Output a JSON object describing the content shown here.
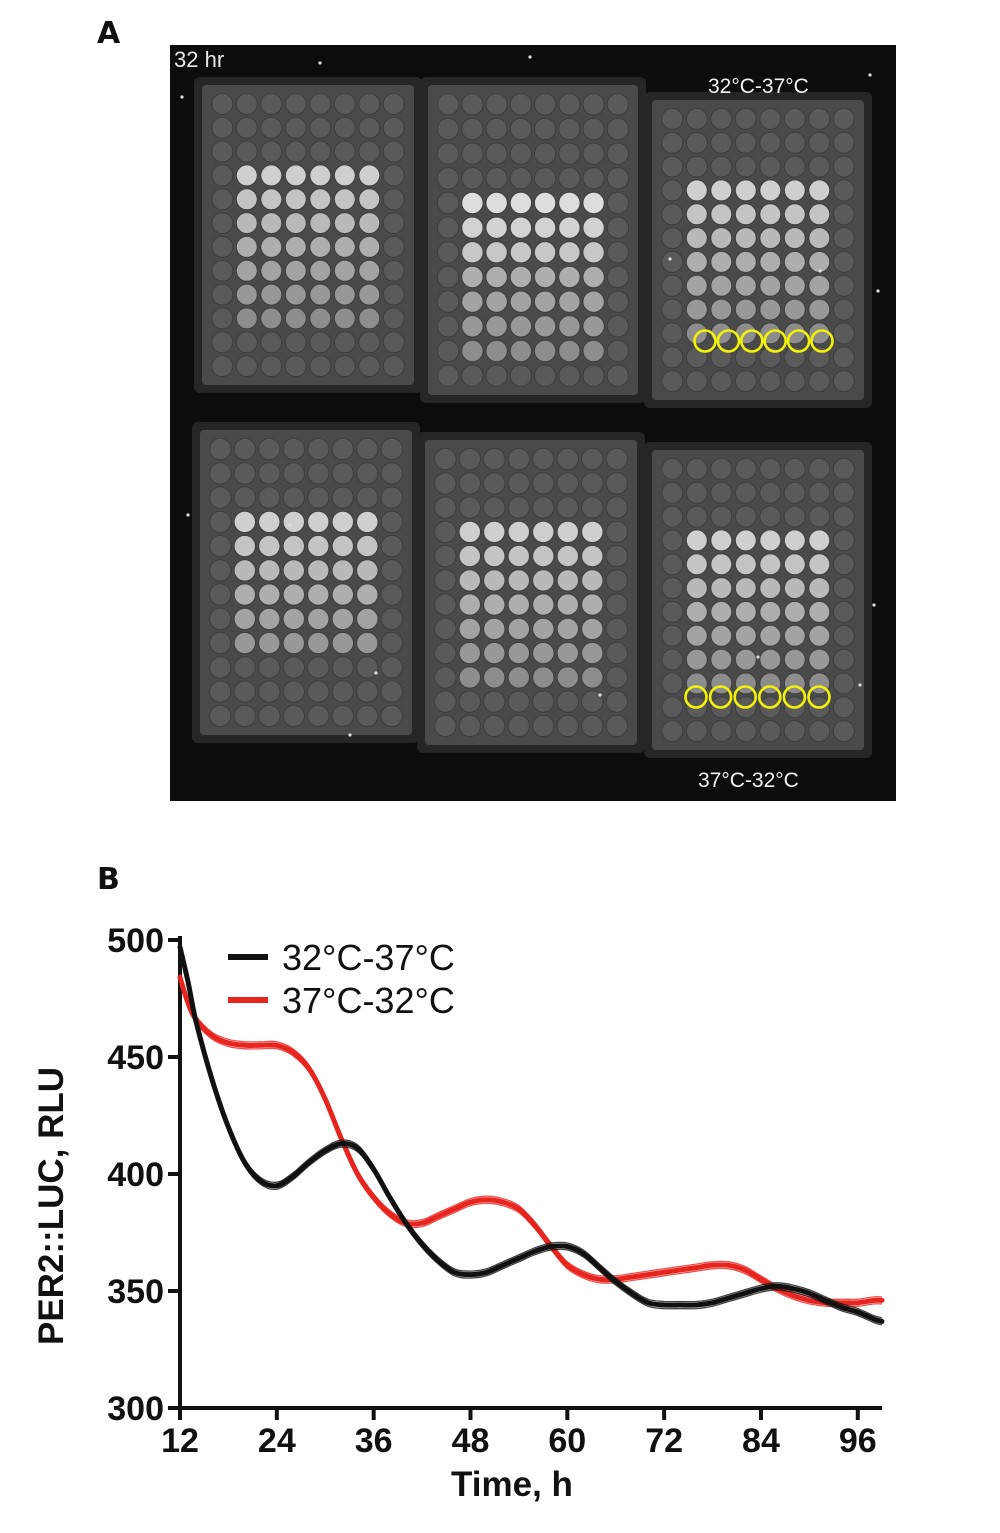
{
  "panel_a": {
    "label": "A",
    "timestamp": "32 hr",
    "top_label": "32°C-37°C",
    "bottom_label": "37°C-32°C",
    "highlight_color": "#f2f20a"
  },
  "panel_b": {
    "label": "B"
  },
  "chart_data": {
    "type": "line",
    "xlabel": "Time, h",
    "ylabel": "PER2::LUC, RLU",
    "xlim": [
      12,
      99
    ],
    "ylim": [
      300,
      500
    ],
    "xticks": [
      12,
      24,
      36,
      48,
      60,
      72,
      84,
      96
    ],
    "yticks": [
      300,
      350,
      400,
      450,
      500
    ],
    "legend_position": "top-left",
    "grid": false,
    "series": [
      {
        "name": "32°C-37°C",
        "color": "#111111",
        "x": [
          12,
          13,
          14,
          16,
          18,
          20,
          22,
          24,
          26,
          28,
          30,
          32,
          34,
          36,
          38,
          40,
          42,
          44,
          46,
          48,
          50,
          52,
          54,
          56,
          58,
          60,
          62,
          64,
          66,
          68,
          70,
          72,
          74,
          76,
          78,
          80,
          82,
          84,
          86,
          88,
          90,
          92,
          94,
          96,
          98,
          99
        ],
        "y": [
          497,
          482,
          465,
          440,
          420,
          405,
          397,
          395,
          399,
          405,
          410,
          413,
          411,
          402,
          390,
          379,
          370,
          363,
          358,
          357,
          358,
          361,
          364,
          367,
          369,
          369,
          366,
          360,
          354,
          349,
          345,
          344,
          344,
          344,
          345,
          347,
          349,
          351,
          352,
          351,
          349,
          346,
          343,
          341,
          338,
          337
        ]
      },
      {
        "name": "37°C-32°C",
        "color": "#e8241f",
        "x": [
          12,
          13,
          14,
          16,
          18,
          20,
          22,
          24,
          26,
          28,
          30,
          32,
          34,
          36,
          38,
          40,
          42,
          44,
          46,
          48,
          50,
          52,
          54,
          56,
          58,
          60,
          62,
          64,
          66,
          68,
          70,
          72,
          74,
          76,
          78,
          80,
          82,
          84,
          86,
          88,
          90,
          92,
          94,
          96,
          98,
          99
        ],
        "y": [
          484,
          473,
          466,
          459,
          456,
          455,
          455,
          455,
          452,
          445,
          432,
          415,
          400,
          390,
          383,
          379,
          379,
          382,
          385,
          388,
          389,
          388,
          385,
          378,
          369,
          361,
          357,
          355,
          355,
          356,
          357,
          358,
          359,
          360,
          361,
          361,
          359,
          355,
          351,
          348,
          346,
          345,
          345,
          345,
          346,
          346
        ]
      }
    ]
  }
}
